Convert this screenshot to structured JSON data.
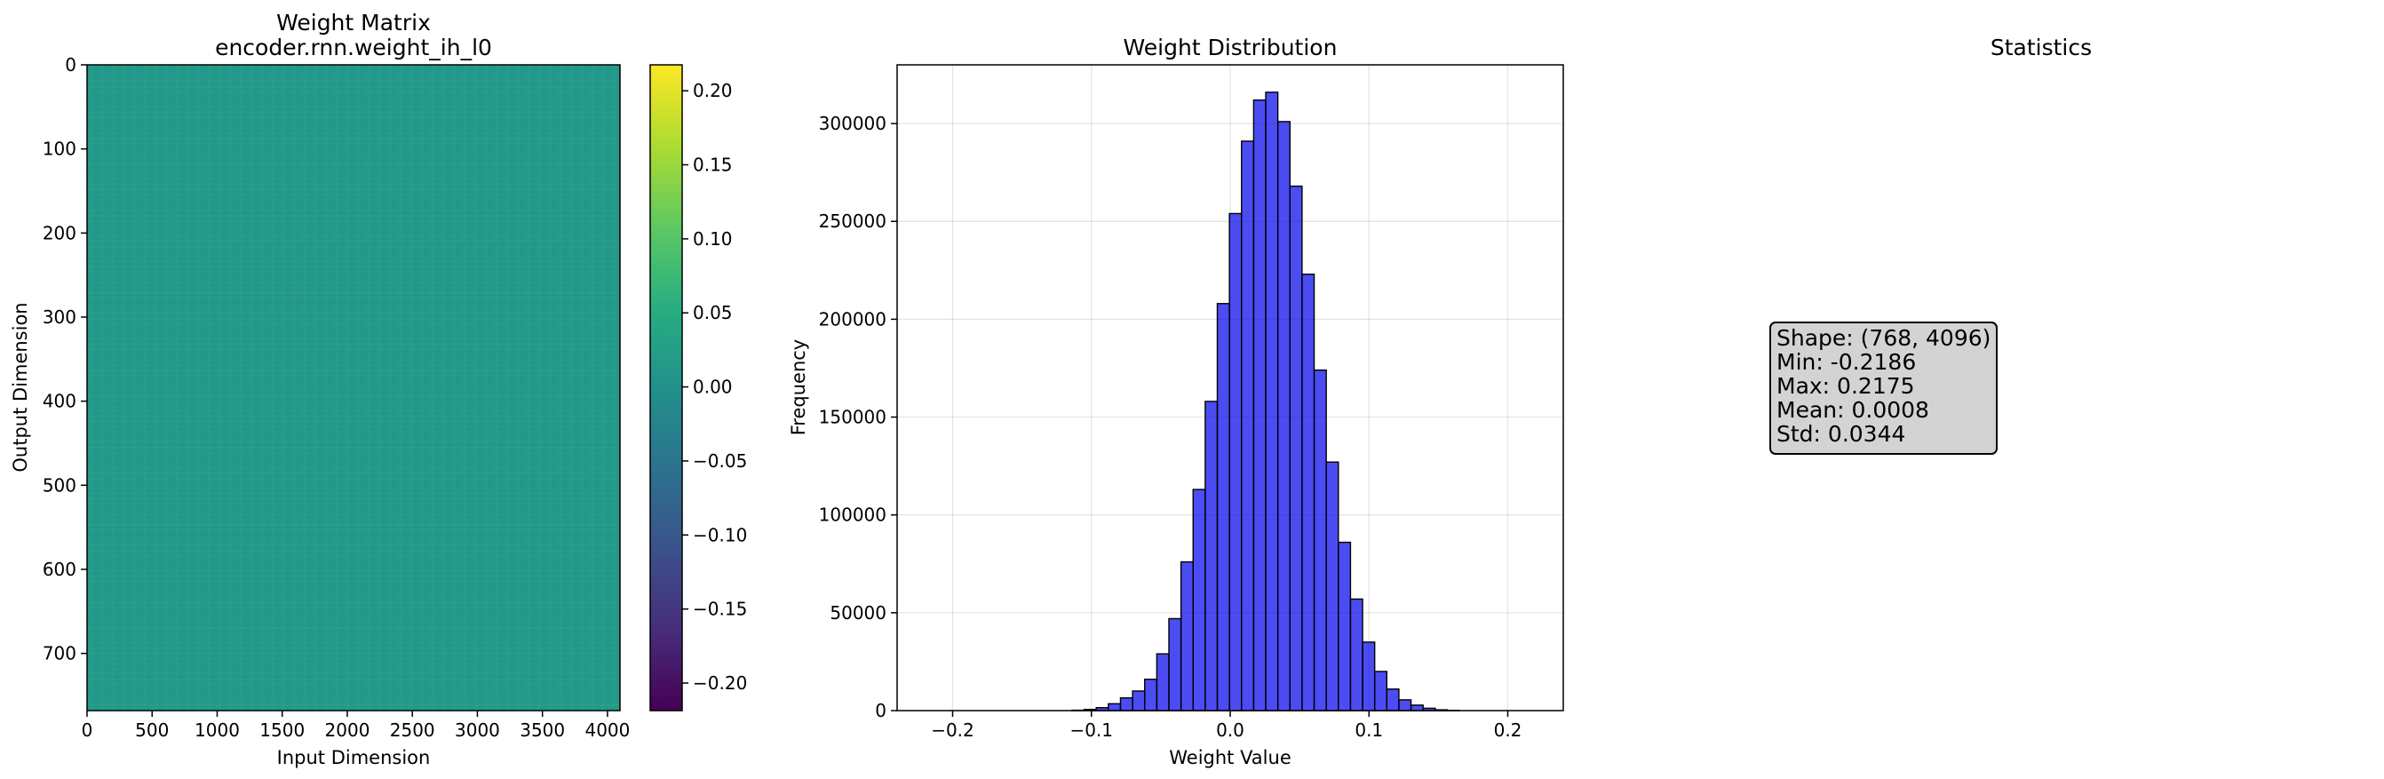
{
  "chart_data": [
    {
      "type": "heatmap",
      "title": "Weight Matrix",
      "subtitle": "encoder.rnn.weight_ih_l0",
      "xlabel": "Input Dimension",
      "ylabel": "Output Dimension",
      "xlim": [
        0,
        4096
      ],
      "ylim": [
        768,
        0
      ],
      "x_ticks": [
        0,
        500,
        1000,
        1500,
        2000,
        2500,
        3000,
        3500,
        4000
      ],
      "y_ticks": [
        0,
        100,
        200,
        300,
        400,
        500,
        600,
        700
      ],
      "colormap": "viridis",
      "colorbar": {
        "min": -0.2186,
        "max": 0.2175,
        "ticks": [
          -0.2,
          -0.15,
          -0.1,
          -0.05,
          0.0,
          0.05,
          0.1,
          0.15,
          0.2
        ],
        "tick_labels": [
          "−0.20",
          "−0.15",
          "−0.10",
          "−0.05",
          "0.00",
          "0.05",
          "0.10",
          "0.15",
          "0.20"
        ]
      }
    },
    {
      "type": "bar",
      "title": "Weight Distribution",
      "xlabel": "Weight Value",
      "ylabel": "Frequency",
      "xlim": [
        -0.24,
        0.24
      ],
      "ylim": [
        0,
        330000
      ],
      "grid": true,
      "x_ticks": [
        -0.2,
        -0.1,
        0.0,
        0.1,
        0.2
      ],
      "x_tick_labels": [
        "−0.2",
        "−0.1",
        "0.0",
        "0.1",
        "0.2"
      ],
      "y_ticks": [
        0,
        50000,
        100000,
        150000,
        200000,
        250000,
        300000
      ],
      "bar_color": "#0000ee",
      "bins": {
        "start": -0.2186,
        "width": 0.008722,
        "counts": [
          0,
          0,
          0,
          0,
          0,
          0,
          0,
          0,
          0,
          0,
          0,
          0,
          200,
          600,
          1500,
          3500,
          6500,
          10000,
          16000,
          29000,
          47000,
          76000,
          113000,
          158000,
          208000,
          254000,
          291000,
          312000,
          316000,
          301000,
          268000,
          223000,
          174000,
          127000,
          86000,
          57000,
          35000,
          20000,
          11000,
          5500,
          2800,
          1200,
          400,
          100,
          0,
          0,
          0,
          0,
          0,
          0
        ]
      }
    },
    {
      "type": "table",
      "title": "Statistics",
      "lines": [
        "Shape: (768, 4096)",
        "Min: -0.2186",
        "Max: 0.2175",
        "Mean: 0.0008",
        "Std: 0.0344"
      ]
    }
  ]
}
